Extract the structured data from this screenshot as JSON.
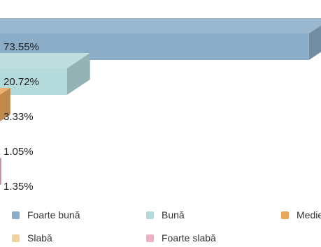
{
  "chart_data": {
    "type": "bar",
    "orientation": "horizontal",
    "three_d": true,
    "categories": [
      "Foarte bună",
      "Bună",
      "Medie",
      "Slabă",
      "Foarte slabă"
    ],
    "values": [
      73.55,
      20.72,
      3.33,
      1.05,
      1.35
    ],
    "value_labels": [
      "73.55%",
      "20.72%",
      "3.33%",
      "1.05%",
      "1.35%"
    ],
    "colors": [
      "#8badc7",
      "#b5dadb",
      "#e8a75a",
      "#efd19c",
      "#ecafc6"
    ],
    "xlim": [
      0,
      78
    ],
    "grid": false,
    "legend": {
      "placement": "bottom",
      "items": [
        {
          "label": "Foarte bună",
          "color": "#8badc7"
        },
        {
          "label": "Bună",
          "color": "#b5dadb"
        },
        {
          "label": "Medie",
          "color": "#e8a75a"
        },
        {
          "label": "Slabă",
          "color": "#efd19c"
        },
        {
          "label": "Foarte slabă",
          "color": "#ecafc6"
        }
      ]
    }
  }
}
